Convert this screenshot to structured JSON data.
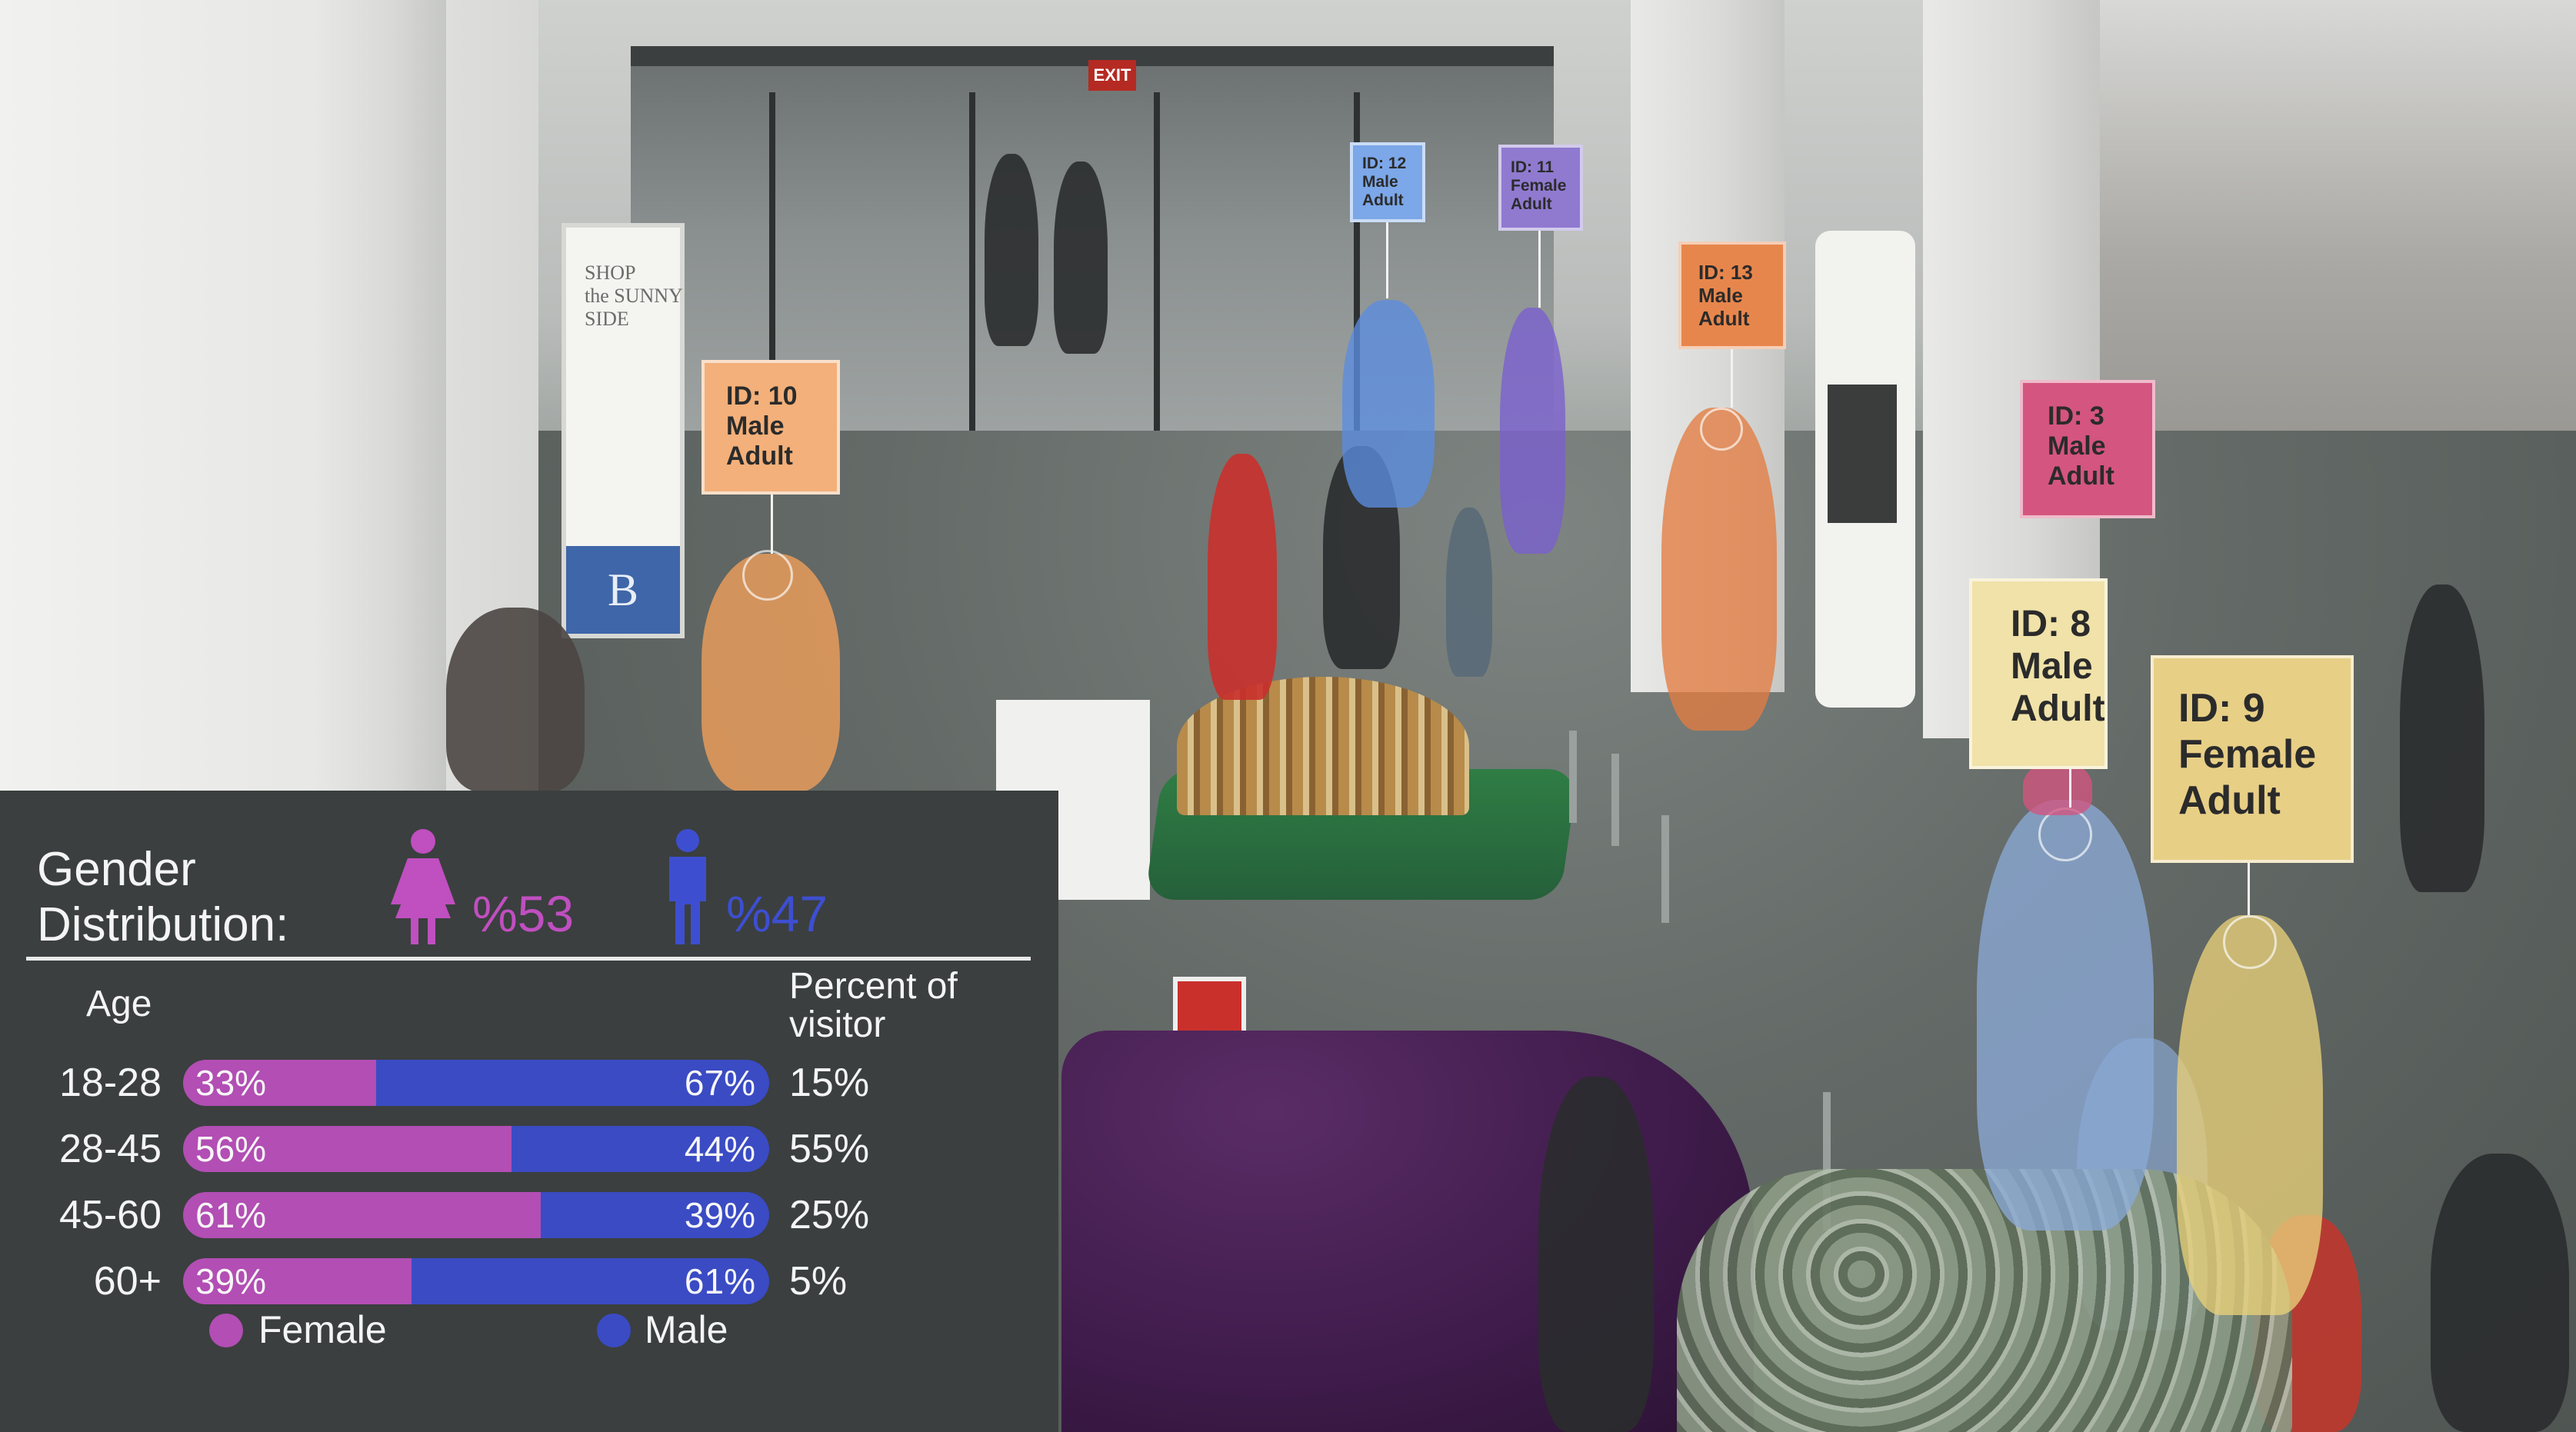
{
  "scene": {
    "exit_sign": "EXIT",
    "signage_text": "SHOP\nthe SUNNY\nSIDE",
    "signage_logo": "B",
    "tags": [
      {
        "id": "ID: 10",
        "gender": "Male",
        "age": "Adult",
        "color": "#f3b07a"
      },
      {
        "id": "ID: 12",
        "gender": "Male",
        "age": "Adult",
        "color": "#7ca7e8"
      },
      {
        "id": "ID: 11",
        "gender": "Female",
        "age": "Adult",
        "color": "#8f7ad0"
      },
      {
        "id": "ID: 13",
        "gender": "Male",
        "age": "Adult",
        "color": "#e7864c"
      },
      {
        "id": "ID: 3",
        "gender": "Male",
        "age": "Adult",
        "color": "#d4557f"
      },
      {
        "id": "ID: 8",
        "gender": "Male",
        "age": "Adult",
        "color": "#f0e2a8"
      },
      {
        "id": "ID: 9",
        "gender": "Female",
        "age": "Adult",
        "color": "#e8cf86"
      }
    ]
  },
  "panel": {
    "title_line1": "Gender",
    "title_line2": "Distribution:",
    "female_pct": "%53",
    "male_pct": "%47",
    "col_age": "Age",
    "col_percent_line1": "Percent of",
    "col_percent_line2": "visitor",
    "colors": {
      "female": "#b24eb4",
      "male": "#3a4bc4",
      "background": "#3b3f3f"
    },
    "rows": [
      {
        "age": "18-28",
        "female": "33%",
        "male": "67%",
        "female_share": 0.33,
        "visitors": "15%"
      },
      {
        "age": "28-45",
        "female": "56%",
        "male": "44%",
        "female_share": 0.56,
        "visitors": "55%"
      },
      {
        "age": "45-60",
        "female": "61%",
        "male": "39%",
        "female_share": 0.61,
        "visitors": "25%"
      },
      {
        "age": "60+",
        "female": "39%",
        "male": "61%",
        "female_share": 0.39,
        "visitors": "5%"
      }
    ],
    "legend": {
      "female": "Female",
      "male": "Male"
    }
  }
}
